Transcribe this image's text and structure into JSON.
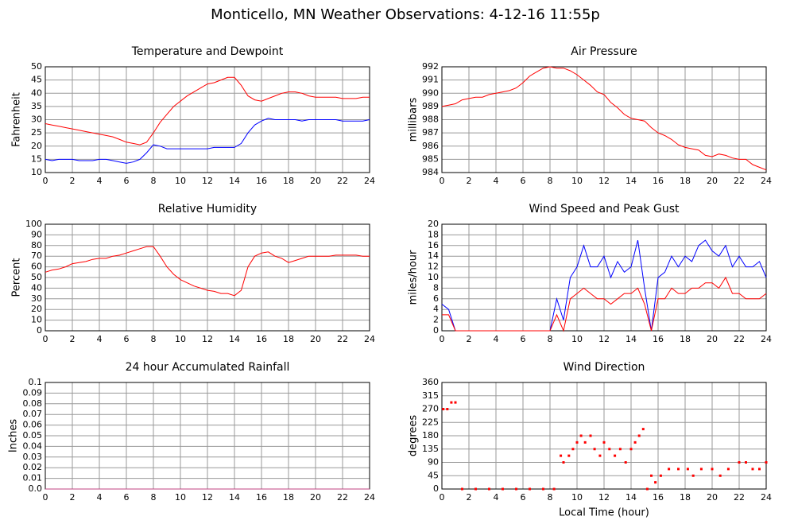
{
  "title": "Monticello, MN Weather Observations: 4-12-16 11:55p",
  "chart_data": [
    {
      "type": "line",
      "title": "Temperature and Dewpoint",
      "ylabel": "Fahrenheit",
      "grid": true,
      "xlim": [
        0,
        24
      ],
      "xticks": [
        0,
        2,
        4,
        6,
        8,
        10,
        12,
        14,
        16,
        18,
        20,
        22,
        24
      ],
      "ylim": [
        10,
        50
      ],
      "yticks": [
        10,
        15,
        20,
        25,
        30,
        35,
        40,
        45,
        50
      ],
      "x": [
        0,
        0.5,
        1,
        1.5,
        2,
        2.5,
        3,
        3.5,
        4,
        4.5,
        5,
        5.5,
        6,
        6.5,
        7,
        7.5,
        8,
        8.5,
        9,
        9.5,
        10,
        10.5,
        11,
        11.5,
        12,
        12.5,
        13,
        13.5,
        14,
        14.5,
        15,
        15.5,
        16,
        16.5,
        17,
        17.5,
        18,
        18.5,
        19,
        19.5,
        20,
        20.5,
        21,
        21.5,
        22,
        22.5,
        23,
        23.5,
        24
      ],
      "series": [
        {
          "color": "#ff0000",
          "values": [
            28.5,
            28,
            27.5,
            27,
            26.5,
            26,
            25.5,
            25,
            24.5,
            24,
            23.5,
            22.5,
            21.5,
            21,
            20.5,
            21.5,
            25,
            29,
            32,
            35,
            37,
            39,
            40.5,
            42,
            43.5,
            44,
            45,
            46,
            46,
            43,
            39,
            37.5,
            37,
            38,
            39,
            40,
            40.5,
            40.5,
            40,
            39,
            38.5,
            38.5,
            38.5,
            38.5,
            38,
            38,
            38,
            38.5,
            38.5
          ]
        },
        {
          "color": "#0000ff",
          "values": [
            15,
            14.5,
            15,
            15,
            15,
            14.5,
            14.5,
            14.5,
            15,
            15,
            14.5,
            14,
            13.5,
            14,
            15,
            17.5,
            20.5,
            20,
            19,
            19,
            19,
            19,
            19,
            19,
            19,
            19.5,
            19.5,
            19.5,
            19.5,
            21,
            25,
            28,
            29.5,
            30.5,
            30,
            30,
            30,
            30,
            29.5,
            30,
            30,
            30,
            30,
            30,
            29.5,
            29.5,
            29.5,
            29.5,
            30
          ]
        }
      ]
    },
    {
      "type": "line",
      "title": "Air Pressure",
      "ylabel": "millibars",
      "grid": true,
      "xlim": [
        0,
        24
      ],
      "xticks": [
        0,
        2,
        4,
        6,
        8,
        10,
        12,
        14,
        16,
        18,
        20,
        22,
        24
      ],
      "ylim": [
        984,
        992
      ],
      "yticks": [
        984,
        985,
        986,
        987,
        988,
        989,
        990,
        991,
        992
      ],
      "x": [
        0,
        0.5,
        1,
        1.5,
        2,
        2.5,
        3,
        3.5,
        4,
        4.5,
        5,
        5.5,
        6,
        6.5,
        7,
        7.5,
        8,
        8.5,
        9,
        9.5,
        10,
        10.5,
        11,
        11.5,
        12,
        12.5,
        13,
        13.5,
        14,
        14.5,
        15,
        15.5,
        16,
        16.5,
        17,
        17.5,
        18,
        18.5,
        19,
        19.5,
        20,
        20.5,
        21,
        21.5,
        22,
        22.5,
        23,
        23.5,
        24
      ],
      "series": [
        {
          "color": "#ff0000",
          "values": [
            989,
            989.1,
            989.2,
            989.5,
            989.6,
            989.7,
            989.7,
            989.9,
            990,
            990.1,
            990.2,
            990.4,
            990.8,
            991.3,
            991.6,
            991.9,
            992,
            991.9,
            991.9,
            991.7,
            991.4,
            991,
            990.6,
            990.1,
            989.9,
            989.3,
            988.9,
            988.4,
            988.1,
            988,
            987.9,
            987.4,
            987,
            986.8,
            986.5,
            986.1,
            985.9,
            985.8,
            985.7,
            985.3,
            985.2,
            985.4,
            985.3,
            985.1,
            985,
            985,
            984.6,
            984.4,
            984.2
          ]
        }
      ]
    },
    {
      "type": "line",
      "title": "Relative Humidity",
      "ylabel": "Percent",
      "grid": true,
      "xlim": [
        0,
        24
      ],
      "xticks": [
        0,
        2,
        4,
        6,
        8,
        10,
        12,
        14,
        16,
        18,
        20,
        22,
        24
      ],
      "ylim": [
        0,
        100
      ],
      "yticks": [
        0,
        10,
        20,
        30,
        40,
        50,
        60,
        70,
        80,
        90,
        100
      ],
      "x": [
        0,
        0.5,
        1,
        1.5,
        2,
        2.5,
        3,
        3.5,
        4,
        4.5,
        5,
        5.5,
        6,
        6.5,
        7,
        7.5,
        8,
        8.5,
        9,
        9.5,
        10,
        10.5,
        11,
        11.5,
        12,
        12.5,
        13,
        13.5,
        14,
        14.5,
        15,
        15.5,
        16,
        16.5,
        17,
        17.5,
        18,
        18.5,
        19,
        19.5,
        20,
        20.5,
        21,
        21.5,
        22,
        22.5,
        23,
        23.5,
        24
      ],
      "series": [
        {
          "color": "#ff0000",
          "values": [
            55,
            57,
            58,
            60,
            63,
            64,
            65,
            67,
            68,
            68,
            70,
            71,
            73,
            75,
            77,
            79,
            79,
            70,
            60,
            53,
            48,
            45,
            42,
            40,
            38,
            37,
            35,
            35,
            33,
            38,
            60,
            70,
            73,
            74,
            70,
            68,
            64,
            66,
            68,
            70,
            70,
            70,
            70,
            71,
            71,
            71,
            71,
            70,
            70
          ]
        }
      ]
    },
    {
      "type": "line",
      "title": "Wind Speed and Peak Gust",
      "ylabel": "miles/hour",
      "grid": true,
      "xlim": [
        0,
        24
      ],
      "xticks": [
        0,
        2,
        4,
        6,
        8,
        10,
        12,
        14,
        16,
        18,
        20,
        22,
        24
      ],
      "ylim": [
        0,
        20
      ],
      "yticks": [
        0,
        2,
        4,
        6,
        8,
        10,
        12,
        14,
        16,
        18,
        20
      ],
      "x": [
        0,
        0.5,
        1,
        1.5,
        2,
        2.5,
        3,
        3.5,
        4,
        4.5,
        5,
        5.5,
        6,
        6.5,
        7,
        7.5,
        8,
        8.5,
        9,
        9.5,
        10,
        10.5,
        11,
        11.5,
        12,
        12.5,
        13,
        13.5,
        14,
        14.5,
        15,
        15.5,
        16,
        16.5,
        17,
        17.5,
        18,
        18.5,
        19,
        19.5,
        20,
        20.5,
        21,
        21.5,
        22,
        22.5,
        23,
        23.5,
        24
      ],
      "series": [
        {
          "color": "#0000ff",
          "values": [
            5,
            4,
            0,
            0,
            0,
            0,
            0,
            0,
            0,
            0,
            0,
            0,
            0,
            0,
            0,
            0,
            0,
            6,
            2,
            10,
            12,
            16,
            12,
            12,
            14,
            10,
            13,
            11,
            12,
            17,
            8,
            0,
            10,
            11,
            14,
            12,
            14,
            13,
            16,
            17,
            15,
            14,
            16,
            12,
            14,
            12,
            12,
            13,
            10
          ]
        },
        {
          "color": "#ff0000",
          "values": [
            3,
            3,
            0,
            0,
            0,
            0,
            0,
            0,
            0,
            0,
            0,
            0,
            0,
            0,
            0,
            0,
            0,
            3,
            0,
            6,
            7,
            8,
            7,
            6,
            6,
            5,
            6,
            7,
            7,
            8,
            5,
            0,
            6,
            6,
            8,
            7,
            7,
            8,
            8,
            9,
            9,
            8,
            10,
            7,
            7,
            6,
            6,
            6,
            7
          ]
        }
      ]
    },
    {
      "type": "line",
      "title": "24 hour Accumulated Rainfall",
      "ylabel": "Inches",
      "grid": true,
      "xlim": [
        0,
        24
      ],
      "xticks": [
        0,
        2,
        4,
        6,
        8,
        10,
        12,
        14,
        16,
        18,
        20,
        22,
        24
      ],
      "ylim": [
        0,
        0.1
      ],
      "yticks": [
        {
          "value": 0,
          "label": "0.0"
        },
        0.01,
        0.02,
        0.03,
        0.04,
        0.05,
        0.06,
        0.07,
        0.08,
        0.09,
        0.1
      ],
      "x": [
        0,
        24
      ],
      "series": [
        {
          "color": "#c04080",
          "values": [
            0,
            0
          ]
        }
      ]
    },
    {
      "type": "scatter",
      "title": "Wind Direction",
      "ylabel": "degrees",
      "xlabel": "Local Time (hour)",
      "grid": true,
      "xlim": [
        0,
        24
      ],
      "xticks": [
        0,
        2,
        4,
        6,
        8,
        10,
        12,
        14,
        16,
        18,
        20,
        22,
        24
      ],
      "ylim": [
        0,
        360
      ],
      "yticks": [
        0,
        45,
        90,
        135,
        180,
        225,
        270,
        315,
        360
      ],
      "x": [
        0.1,
        0.4,
        0.7,
        1.0,
        1.5,
        2.5,
        3.5,
        4.5,
        5.5,
        6.5,
        7.5,
        8.3,
        8.8,
        9.0,
        9.4,
        9.7,
        10.0,
        10.3,
        10.6,
        11.0,
        11.3,
        11.7,
        12.0,
        12.4,
        12.8,
        13.2,
        13.6,
        14.0,
        14.3,
        14.6,
        14.9,
        15.2,
        15.5,
        15.8,
        16.2,
        16.8,
        17.5,
        18.2,
        18.6,
        19.2,
        20.0,
        20.6,
        21.2,
        22.0,
        22.5,
        23.0,
        23.5,
        24.0
      ],
      "series": [
        {
          "color": "#ff0000",
          "values": [
            270,
            270,
            292.5,
            292.5,
            0,
            0,
            0,
            0,
            0,
            0,
            0,
            0,
            112.5,
            90,
            112.5,
            135,
            157.5,
            180,
            157.5,
            180,
            135,
            112.5,
            157.5,
            135,
            112.5,
            135,
            90,
            135,
            157.5,
            180,
            202.5,
            0,
            45,
            22.5,
            45,
            67.5,
            67.5,
            67.5,
            45,
            67.5,
            67.5,
            45,
            67.5,
            90,
            90,
            67.5,
            67.5,
            90
          ]
        }
      ]
    }
  ]
}
